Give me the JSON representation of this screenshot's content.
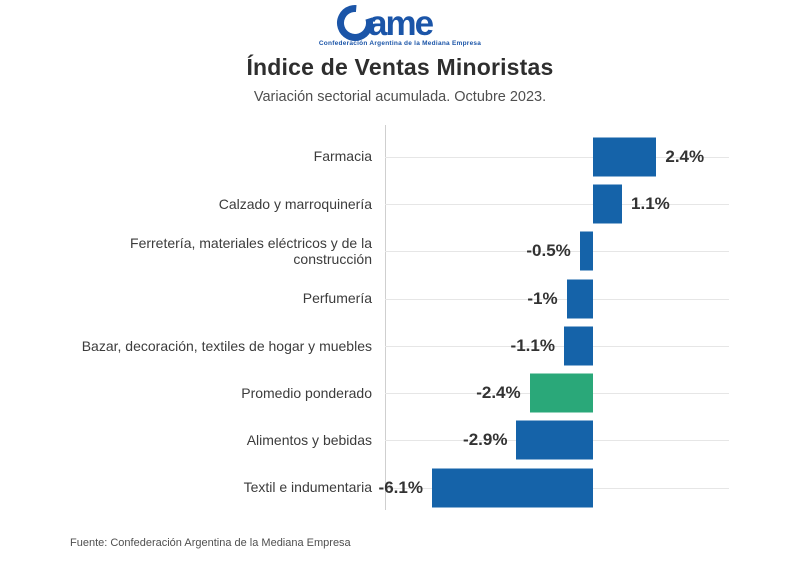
{
  "logo": {
    "word": "ame",
    "tagline": "Confederación Argentina de la Mediana Empresa",
    "color": "#1b55a8"
  },
  "header": {
    "title": "Índice de Ventas Minoristas",
    "subtitle": "Variación sectorial acumulada. Octubre 2023."
  },
  "footer": {
    "source": "Fuente: Confederación Argentina de la Mediana Empresa"
  },
  "chart_data": {
    "type": "bar",
    "orientation": "horizontal",
    "title": "Índice de Ventas Minoristas",
    "subtitle": "Variación sectorial acumulada. Octubre 2023.",
    "unit": "%",
    "categories": [
      "Farmacia",
      "Calzado y marroquinería",
      "Ferretería, materiales eléctricos y de la construcción",
      "Perfumería",
      "Bazar, decoración, textiles de hogar y muebles",
      "Promedio ponderado",
      "Alimentos y bebidas",
      "Textil e indumentaria"
    ],
    "values": [
      2.4,
      1.1,
      -0.5,
      -1,
      -1.1,
      -2.4,
      -2.9,
      -6.1
    ],
    "value_labels": [
      "2.4%",
      "1.1%",
      "-0.5%",
      "-1%",
      "-1.1%",
      "-2.4%",
      "-2.9%",
      "-6.1%"
    ],
    "highlight_index": 5,
    "highlight_category": "Promedio ponderado",
    "colors": {
      "bar": "#1563a9",
      "highlight": "#2aa879",
      "value_label": "#333333",
      "category_label": "#3c3c3c",
      "gridline": "#e6e6e6",
      "axis": "#cfcfcf"
    },
    "xlim": [
      -8,
      5
    ],
    "grid": "horizontal line per category at row center",
    "legend": "none",
    "value_label_position": "outside-end"
  }
}
